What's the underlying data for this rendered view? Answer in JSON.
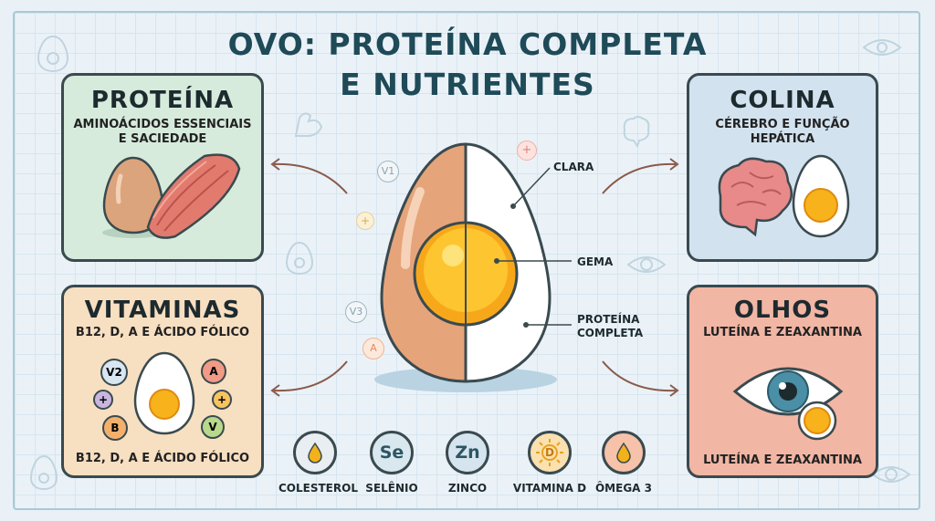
{
  "title": {
    "line1": "OVO: PROTEÍNA COMPLETA",
    "line2": "E NUTRIENTES"
  },
  "cards": {
    "proteina": {
      "title": "PROTEÍNA",
      "sub1": "AMINOÁCIDOS ESSENCIAIS",
      "sub2": "E SACIEDADE"
    },
    "vitaminas": {
      "title": "VITAMINAS",
      "sub": "B12, D, A E ÁCIDO FÓLICO",
      "footer": "B12, D, A E ÁCIDO FÓLICO",
      "badges": [
        "V2",
        "A",
        "B",
        "V",
        "+",
        "+"
      ]
    },
    "colina": {
      "title": "COLINA",
      "sub1": "CÉREBRO E FUNÇÃO",
      "sub2": "HEPÁTICA"
    },
    "olhos": {
      "title": "OLHOS",
      "sub": "LUTEÍNA E ZEAXANTINA",
      "footer": "LUTEÍNA E ZEAXANTINA"
    }
  },
  "egg_labels": {
    "clara": "CLARA",
    "gema": "GEMA",
    "proteina1": "PROTEÍNA",
    "proteina2": "COMPLETA"
  },
  "floating_badges": [
    "V1",
    "V3",
    "A",
    "+",
    "+"
  ],
  "nutrients": [
    {
      "label": "COLESTEROL",
      "symbol": "",
      "icon": "drop-icon",
      "color": "#e8eef2"
    },
    {
      "label": "SELÊNIO",
      "symbol": "Se",
      "icon": "",
      "color": "#d8e8ee"
    },
    {
      "label": "ZINCO",
      "symbol": "Zn",
      "icon": "",
      "color": "#d5e4ee"
    },
    {
      "label": "VITAMINA D",
      "symbol": "D",
      "icon": "sun-icon",
      "color": "#fbe0b0"
    },
    {
      "label": "ÔMEGA 3",
      "symbol": "",
      "icon": "drop-icon",
      "color": "#f6c2aa"
    }
  ],
  "colors": {
    "title": "#1f4a58",
    "yolk": "#f7b21c",
    "white": "#ffffff",
    "shell": "#e6a47a"
  }
}
